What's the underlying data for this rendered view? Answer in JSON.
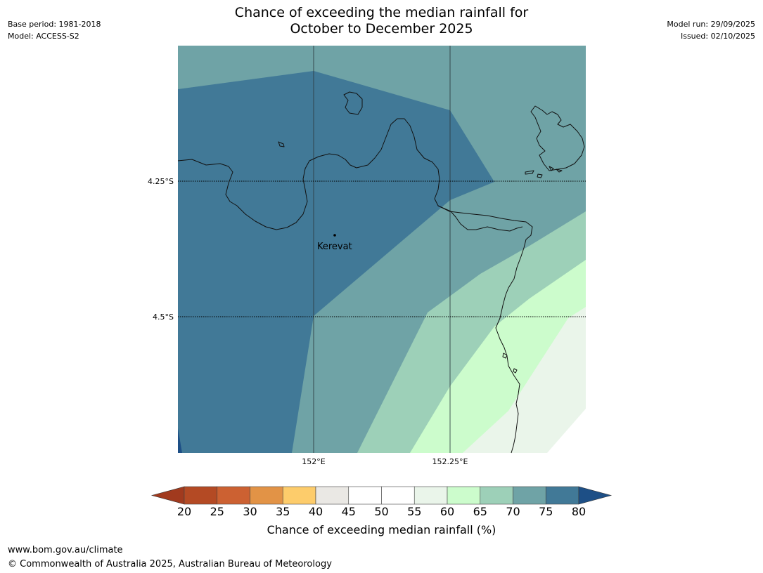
{
  "header": {
    "base_period": "Base period: 1981-2018",
    "model": "Model: ACCESS-S2",
    "title_line1": "Chance of exceeding the median rainfall for",
    "title_line2": "October to December 2025",
    "model_run": "Model run: 29/09/2025",
    "issued": "Issued: 02/10/2025"
  },
  "map": {
    "place_label": "Kerevat",
    "lat_labels": [
      "4.25°S",
      "4.5°S"
    ],
    "lon_labels": [
      "152°E",
      "152.25°E"
    ],
    "colors": {
      "band_80_plus": "#1d4f86",
      "band_75_80": "#417997",
      "band_70_75": "#6fa3a6",
      "band_65_70": "#9dd0b8",
      "band_60_65": "#ccfccc",
      "band_55_60": "#eaf5ea",
      "band_50_55": "#ffffff"
    }
  },
  "colorbar": {
    "ticks": [
      "20",
      "25",
      "30",
      "35",
      "40",
      "45",
      "50",
      "55",
      "60",
      "65",
      "70",
      "75",
      "80"
    ],
    "colors": [
      "#a13a1e",
      "#b44a24",
      "#cc6132",
      "#e29346",
      "#fdcc6b",
      "#eae8e4",
      "#ffffff",
      "#ffffff",
      "#eaf5ea",
      "#ccfccc",
      "#9dd0b8",
      "#6fa3a6",
      "#417997",
      "#1d4f86"
    ],
    "label": "Chance of exceeding median rainfall (%)"
  },
  "footer": {
    "url": "www.bom.gov.au/climate",
    "copyright": "© Commonwealth of Australia 2025, Australian Bureau of Meteorology"
  }
}
